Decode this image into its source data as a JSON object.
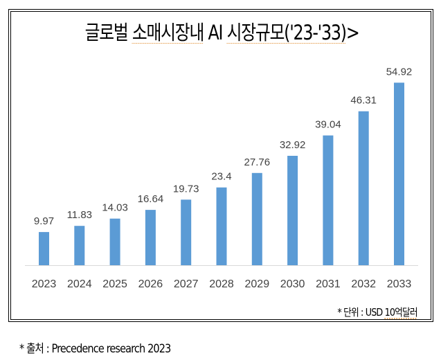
{
  "chart_data": {
    "type": "bar",
    "title": "글로벌 소매시장내 AI 시장규모('23-'33)>",
    "title_parts": {
      "prefix": "글로벌 ",
      "underlined_1": "소매시장내",
      "middle": " AI ",
      "underlined_2": "시장규모('23-'33)",
      "suffix": ">"
    },
    "categories": [
      "2023",
      "2024",
      "2025",
      "2026",
      "2027",
      "2028",
      "2029",
      "2030",
      "2031",
      "2032",
      "2033"
    ],
    "values": [
      9.97,
      11.83,
      14.03,
      16.64,
      19.73,
      23.4,
      27.76,
      32.92,
      39.04,
      46.31,
      54.92
    ],
    "value_labels": [
      "9.97",
      "11.83",
      "14.03",
      "16.64",
      "19.73",
      "23.4",
      "27.76",
      "32.92",
      "39.04",
      "46.31",
      "54.92"
    ],
    "xlabel": "",
    "ylabel": "",
    "ylim": [
      0,
      60
    ],
    "grid": false,
    "legend": "none",
    "bar_color": "#5b9bd5",
    "unit_note": {
      "prefix": "* 단위 : USD ",
      "underlined": "10억달러"
    }
  },
  "footnote": {
    "source": "* 출처 : Precedence research 2023"
  }
}
